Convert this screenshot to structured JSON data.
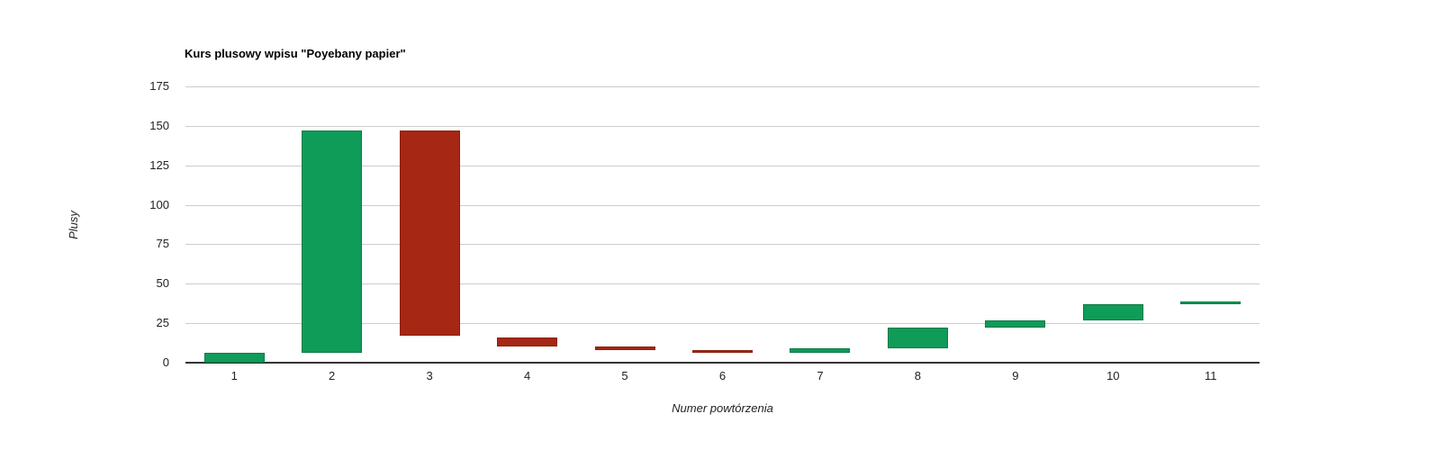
{
  "title": "Kurs plusowy wpisu \"Poyebany papier\"",
  "axes": {
    "y_title": "Plusy",
    "x_title": "Numer powtórzenia"
  },
  "chart_data": {
    "type": "bar",
    "subtype": "waterfall-candlestick",
    "title": "Kurs plusowy wpisu \"Poyebany papier\"",
    "xlabel": "Numer powtórzenia",
    "ylabel": "Plusy",
    "categories": [
      "1",
      "2",
      "3",
      "4",
      "5",
      "6",
      "7",
      "8",
      "9",
      "10",
      "11"
    ],
    "bars": [
      {
        "category": "1",
        "open": 0,
        "close": 6,
        "direction": "rising"
      },
      {
        "category": "2",
        "open": 6,
        "close": 147,
        "direction": "rising"
      },
      {
        "category": "3",
        "open": 147,
        "close": 17,
        "direction": "falling"
      },
      {
        "category": "4",
        "open": 16,
        "close": 10,
        "direction": "falling"
      },
      {
        "category": "5",
        "open": 10,
        "close": 8,
        "direction": "falling"
      },
      {
        "category": "6",
        "open": 8,
        "close": 6,
        "direction": "falling"
      },
      {
        "category": "7",
        "open": 6,
        "close": 9,
        "direction": "rising"
      },
      {
        "category": "8",
        "open": 9,
        "close": 22,
        "direction": "rising"
      },
      {
        "category": "9",
        "open": 22,
        "close": 27,
        "direction": "rising"
      },
      {
        "category": "10",
        "open": 27,
        "close": 37,
        "direction": "rising"
      },
      {
        "category": "11",
        "open": 37,
        "close": 39,
        "direction": "rising"
      }
    ],
    "y_ticks": [
      0,
      25,
      50,
      75,
      100,
      125,
      150,
      175
    ],
    "ylim": [
      0,
      175
    ],
    "grid": true,
    "legend": "none",
    "colors": {
      "rising": "#0f9b58",
      "rising_border": "#0c7a45",
      "falling": "#a52714",
      "falling_border": "#8c2110",
      "gridline": "#cccccc",
      "axis_line": "#333333",
      "tick_label": "#222222",
      "title_text": "#000000"
    }
  }
}
